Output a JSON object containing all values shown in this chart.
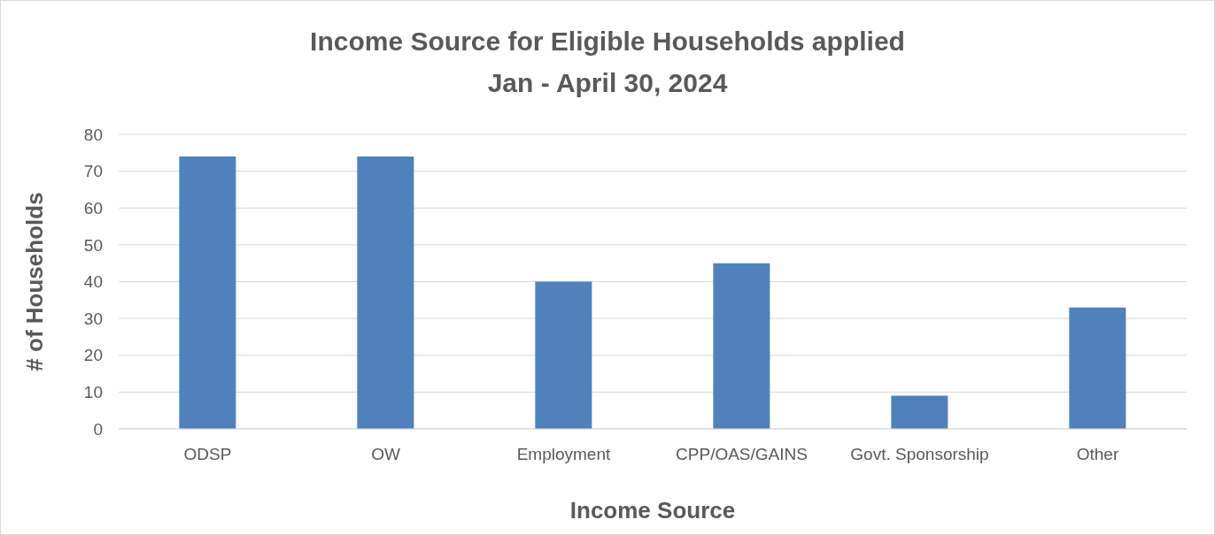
{
  "chart_data": {
    "type": "bar",
    "title": "Income Source for Eligible Households applied\nJan - April 30, 2024",
    "xlabel": "Income Source",
    "ylabel": "# of Households",
    "categories": [
      "ODSP",
      "OW",
      "Employment",
      "CPP/OAS/GAINS",
      "Govt. Sponsorship",
      "Other"
    ],
    "values": [
      74,
      74,
      40,
      45,
      9,
      33
    ],
    "color": "#4f81bd",
    "ylim": [
      0,
      80
    ],
    "yticks": [
      0,
      10,
      20,
      30,
      40,
      50,
      60,
      70,
      80
    ],
    "grid": "y",
    "legend": false
  }
}
